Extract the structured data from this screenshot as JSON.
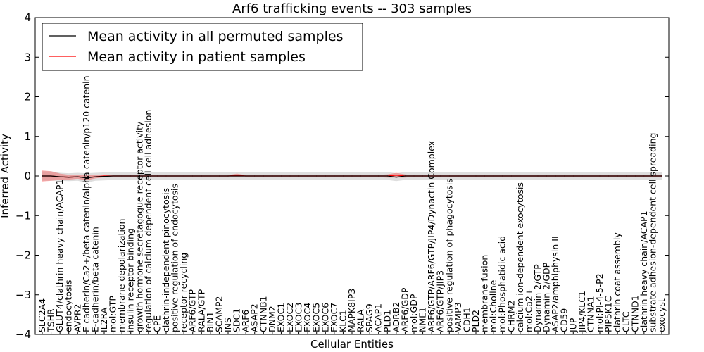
{
  "chart_data": {
    "type": "line",
    "title": "Arf6 trafficking events -- 303 samples",
    "xlabel": "Cellular Entities",
    "ylabel": "Inferred Activity",
    "ylim": [
      -4,
      4
    ],
    "yticks": [
      4,
      3,
      2,
      1,
      0,
      -1,
      -2,
      -3,
      -4
    ],
    "ytick_labels": [
      "4",
      "3",
      "2",
      "1",
      "0",
      "−1",
      "−2",
      "−3",
      "−4"
    ],
    "legend_position": "top-left",
    "categories": [
      "SLC2A4",
      "TSHR",
      "GLUT4/clathrin heavy chain/ACAP1",
      "endocytosis",
      "AVPR2",
      "E-cadherin/Ca2+/beta catenin/alpha catenin/p120 catenin",
      "E-cadherin/beta catenin",
      "IL2RA",
      "mol:GTP",
      "membrane depolarization",
      "insulin receptor binding",
      "growth hormone secretagogue receptor activity",
      "regulation of calcium-dependent cell-cell adhesion",
      "CPE",
      "clathrin-independent pinocytosis",
      "positive regulation of endocytosis",
      "receptor recycling",
      "ARF6/GTP",
      "RALA/GTP",
      "BIN1",
      "SCAMP2",
      "INS",
      "SDC1",
      "ARF6",
      "ASAP2",
      "CTNNB1",
      "DNM2",
      "EXOC1",
      "EXOC2",
      "EXOC3",
      "EXOC4",
      "EXOC5",
      "EXOC6",
      "EXOC7",
      "KLC1",
      "MAPK8IP3",
      "RALA",
      "SPAG9",
      "ACAP1",
      "PLD1",
      "ADRB2",
      "ARF6/GDP",
      "mol:GDP",
      "NME1",
      "ARF6/GTP/ARF6/GTP/JIP4/Dynactin Complex",
      "ARF6/GTP/JIP3",
      "positive regulation of phagocytosis",
      "VAMP3",
      "CDH1",
      "PLD2",
      "membrane fusion",
      "mol:Choline",
      "mol:Phosphatidic acid",
      "CHRM2",
      "calcium ion-dependent exocytosis",
      "mol:Ca2+",
      "Dynamin 2/GTP",
      "Dynamin 2/GDP",
      "ASAP2/amphiphysin II",
      "CD59",
      "JUP",
      "JIP4/KLC1",
      "CTNNA1",
      "mol:PI-4-5-P2",
      "PIP5K1C",
      "clathrin coat assembly",
      "CLTC",
      "CTNND1",
      "clathrin heavy chain/ACAP1",
      "substrate adhesion-dependent cell spreading",
      "exocyst"
    ],
    "series": [
      {
        "name": "Mean activity in all permuted samples",
        "color": "#000000",
        "values": [
          0,
          0,
          -0.02,
          -0.03,
          -0.02,
          -0.05,
          -0.02,
          -0.01,
          0,
          0,
          0,
          0,
          0,
          0,
          0,
          0,
          0,
          0,
          0,
          0,
          0,
          0,
          0,
          0,
          0,
          0,
          0,
          0,
          0,
          0,
          0,
          0,
          0,
          0,
          0,
          0,
          0,
          0,
          0,
          0,
          -0.03,
          0,
          0,
          0,
          0,
          0,
          0,
          0,
          0,
          0,
          0,
          0,
          0,
          0,
          0,
          0,
          0,
          0,
          0,
          0,
          0,
          0,
          0,
          0,
          0,
          0,
          0,
          0,
          0,
          0,
          0
        ]
      },
      {
        "name": "Mean activity in patient samples",
        "color": "#ff0000",
        "values": [
          0,
          0,
          -0.02,
          -0.03,
          -0.02,
          -0.04,
          -0.02,
          0,
          0,
          0,
          0,
          0,
          0,
          0,
          0,
          0,
          0,
          0,
          0,
          0,
          0,
          0,
          0.02,
          0,
          0,
          0,
          0,
          0,
          0,
          0,
          0,
          0,
          0,
          0,
          0,
          0,
          0,
          0,
          0,
          0,
          0.02,
          0,
          0,
          0,
          0,
          0,
          0,
          0,
          0,
          0,
          0,
          0,
          0,
          0,
          0,
          0,
          0,
          0,
          0,
          0,
          0,
          0,
          0,
          0,
          0,
          0,
          0,
          0,
          0,
          0,
          0
        ]
      }
    ],
    "band_permuted": [
      0.12,
      0.12,
      0.1,
      0.1,
      0.1,
      0.12,
      0.1,
      0.1,
      0.1,
      0.1,
      0.1,
      0.1,
      0.1,
      0.1,
      0.1,
      0.1,
      0.1,
      0.1,
      0.1,
      0.1,
      0.1,
      0.1,
      0.1,
      0.1,
      0.1,
      0.1,
      0.1,
      0.1,
      0.1,
      0.1,
      0.1,
      0.1,
      0.1,
      0.1,
      0.1,
      0.1,
      0.1,
      0.1,
      0.1,
      0.1,
      0.1,
      0.1,
      0.1,
      0.1,
      0.1,
      0.1,
      0.1,
      0.1,
      0.1,
      0.1,
      0.1,
      0.1,
      0.1,
      0.1,
      0.1,
      0.1,
      0.1,
      0.1,
      0.1,
      0.1,
      0.1,
      0.1,
      0.1,
      0.1,
      0.1,
      0.1,
      0.1,
      0.1,
      0.1,
      0.1,
      0.1
    ],
    "band_patient": [
      0.14,
      0.12,
      0.08,
      0.06,
      0.05,
      0.07,
      0.04,
      0.03,
      0.03,
      0.02,
      0.02,
      0.02,
      0.02,
      0.02,
      0.02,
      0.02,
      0.02,
      0.02,
      0.02,
      0.02,
      0.02,
      0.02,
      0.04,
      0.02,
      0.02,
      0.02,
      0.02,
      0.02,
      0.02,
      0.02,
      0.02,
      0.02,
      0.02,
      0.02,
      0.02,
      0.02,
      0.02,
      0.02,
      0.03,
      0.04,
      0.06,
      0.04,
      0.02,
      0.02,
      0.02,
      0.02,
      0.02,
      0.02,
      0.02,
      0.02,
      0.02,
      0.02,
      0.02,
      0.02,
      0.02,
      0.02,
      0.02,
      0.02,
      0.02,
      0.02,
      0.02,
      0.02,
      0.02,
      0.02,
      0.02,
      0.02,
      0.02,
      0.02,
      0.02,
      0.02,
      0.02
    ]
  }
}
